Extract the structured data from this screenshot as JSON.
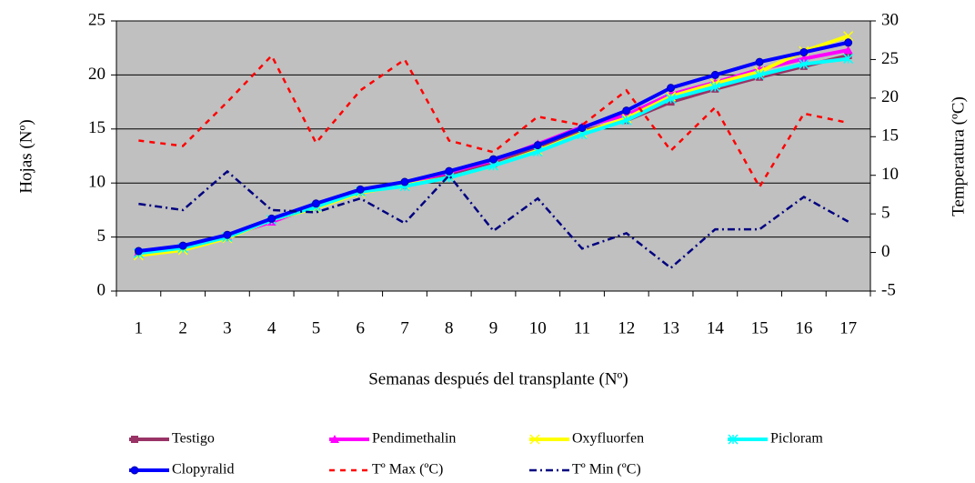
{
  "chart_data": {
    "type": "line",
    "x_label": "Semanas después del transplante (Nº)",
    "y_label": "Hojas (Nº)",
    "y2_label": "Temperatura (ºC)",
    "categories": [
      "1",
      "2",
      "3",
      "4",
      "5",
      "6",
      "7",
      "8",
      "9",
      "10",
      "11",
      "12",
      "13",
      "14",
      "15",
      "16",
      "17"
    ],
    "ylim": [
      0,
      25
    ],
    "yticks": [
      0,
      5,
      10,
      15,
      20,
      25
    ],
    "y2lim": [
      -5,
      30
    ],
    "y2ticks": [
      -5,
      0,
      5,
      10,
      15,
      20,
      25,
      30
    ],
    "grid": true,
    "plot_background": "#c0c0c0",
    "series": [
      {
        "name": "Testigo",
        "color": "#993366",
        "marker": "square",
        "values": [
          3.5,
          4,
          5,
          6.5,
          7.8,
          9.2,
          9.8,
          10.7,
          11.8,
          13.2,
          14.8,
          15.8,
          17.5,
          18.7,
          19.8,
          20.8,
          21.8
        ]
      },
      {
        "name": "Pendimethalin",
        "color": "#ff00ff",
        "marker": "triangle",
        "values": [
          3.6,
          4.1,
          5.1,
          6.4,
          7.9,
          9.3,
          10,
          11,
          12.1,
          13.6,
          15.2,
          16.3,
          18.2,
          19.3,
          20.5,
          21.5,
          22.3
        ]
      },
      {
        "name": "Oxyfluorfen",
        "color": "#ffff00",
        "marker": "x",
        "values": [
          3.3,
          3.8,
          4.9,
          6.6,
          7.7,
          9.1,
          9.8,
          10.5,
          11.6,
          13,
          14.6,
          16,
          18,
          19.2,
          20.3,
          22.2,
          23.6
        ]
      },
      {
        "name": "Picloram",
        "color": "#00ffff",
        "marker": "star",
        "values": [
          3.5,
          4,
          5,
          6.6,
          7.8,
          9.2,
          9.7,
          10.5,
          11.6,
          12.9,
          14.5,
          15.8,
          17.8,
          18.9,
          20,
          21,
          21.5
        ]
      },
      {
        "name": "Clopyralid",
        "color": "#0000ff",
        "marker": "circle",
        "values": [
          3.7,
          4.2,
          5.2,
          6.7,
          8.1,
          9.4,
          10.1,
          11.1,
          12.2,
          13.5,
          15.1,
          16.7,
          18.8,
          20,
          21.2,
          22.1,
          23
        ]
      },
      {
        "name": "Tº Max (ºC)",
        "color": "#ff0000",
        "dash": "6,6",
        "axis": "y2",
        "values": [
          14.5,
          13.8,
          19.5,
          25.5,
          14.2,
          21,
          25,
          14.5,
          13,
          17.6,
          16.5,
          21,
          13.2,
          18.8,
          8.5,
          18,
          16.8
        ]
      },
      {
        "name": "Tº Min (ºC)",
        "color": "#000080",
        "dash": "8,4,2,4",
        "axis": "y2",
        "values": [
          6.3,
          5.5,
          10.5,
          5.5,
          5.2,
          7,
          3.8,
          10,
          2.8,
          7,
          0.5,
          2.5,
          -2,
          3,
          3,
          7.2,
          4
        ]
      }
    ]
  }
}
